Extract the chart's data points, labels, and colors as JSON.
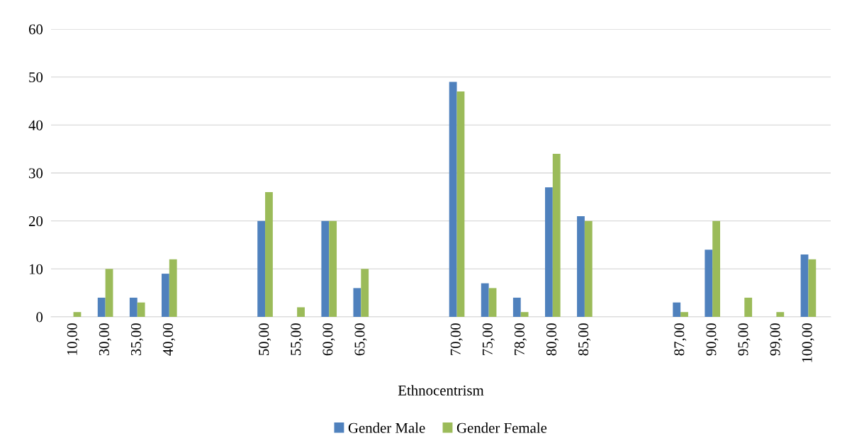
{
  "chart_data": {
    "type": "bar",
    "xlabel": "Ethnocentrism",
    "categories": [
      "10,00",
      "30,00",
      "35,00",
      "40,00",
      null,
      null,
      "50,00",
      "55,00",
      "60,00",
      "65,00",
      null,
      null,
      "70,00",
      "75,00",
      "78,00",
      "80,00",
      "85,00",
      null,
      null,
      "87,00",
      "90,00",
      "95,00",
      "99,00",
      "100,00"
    ],
    "series": [
      {
        "name": "Gender Male",
        "color": "#4f81bd",
        "values": [
          null,
          4,
          4,
          9,
          null,
          null,
          20,
          null,
          20,
          6,
          null,
          null,
          49,
          7,
          4,
          27,
          21,
          null,
          null,
          3,
          14,
          null,
          null,
          13
        ]
      },
      {
        "name": "Gender Female",
        "color": "#9bbb59",
        "values": [
          1,
          10,
          3,
          12,
          null,
          null,
          26,
          2,
          20,
          10,
          null,
          null,
          47,
          6,
          1,
          34,
          20,
          null,
          null,
          1,
          20,
          4,
          1,
          12
        ]
      }
    ],
    "ylim": [
      0,
      60
    ],
    "yticks": [
      0,
      10,
      20,
      30,
      40,
      50,
      60
    ],
    "grid": "y",
    "legend": "bottom"
  }
}
